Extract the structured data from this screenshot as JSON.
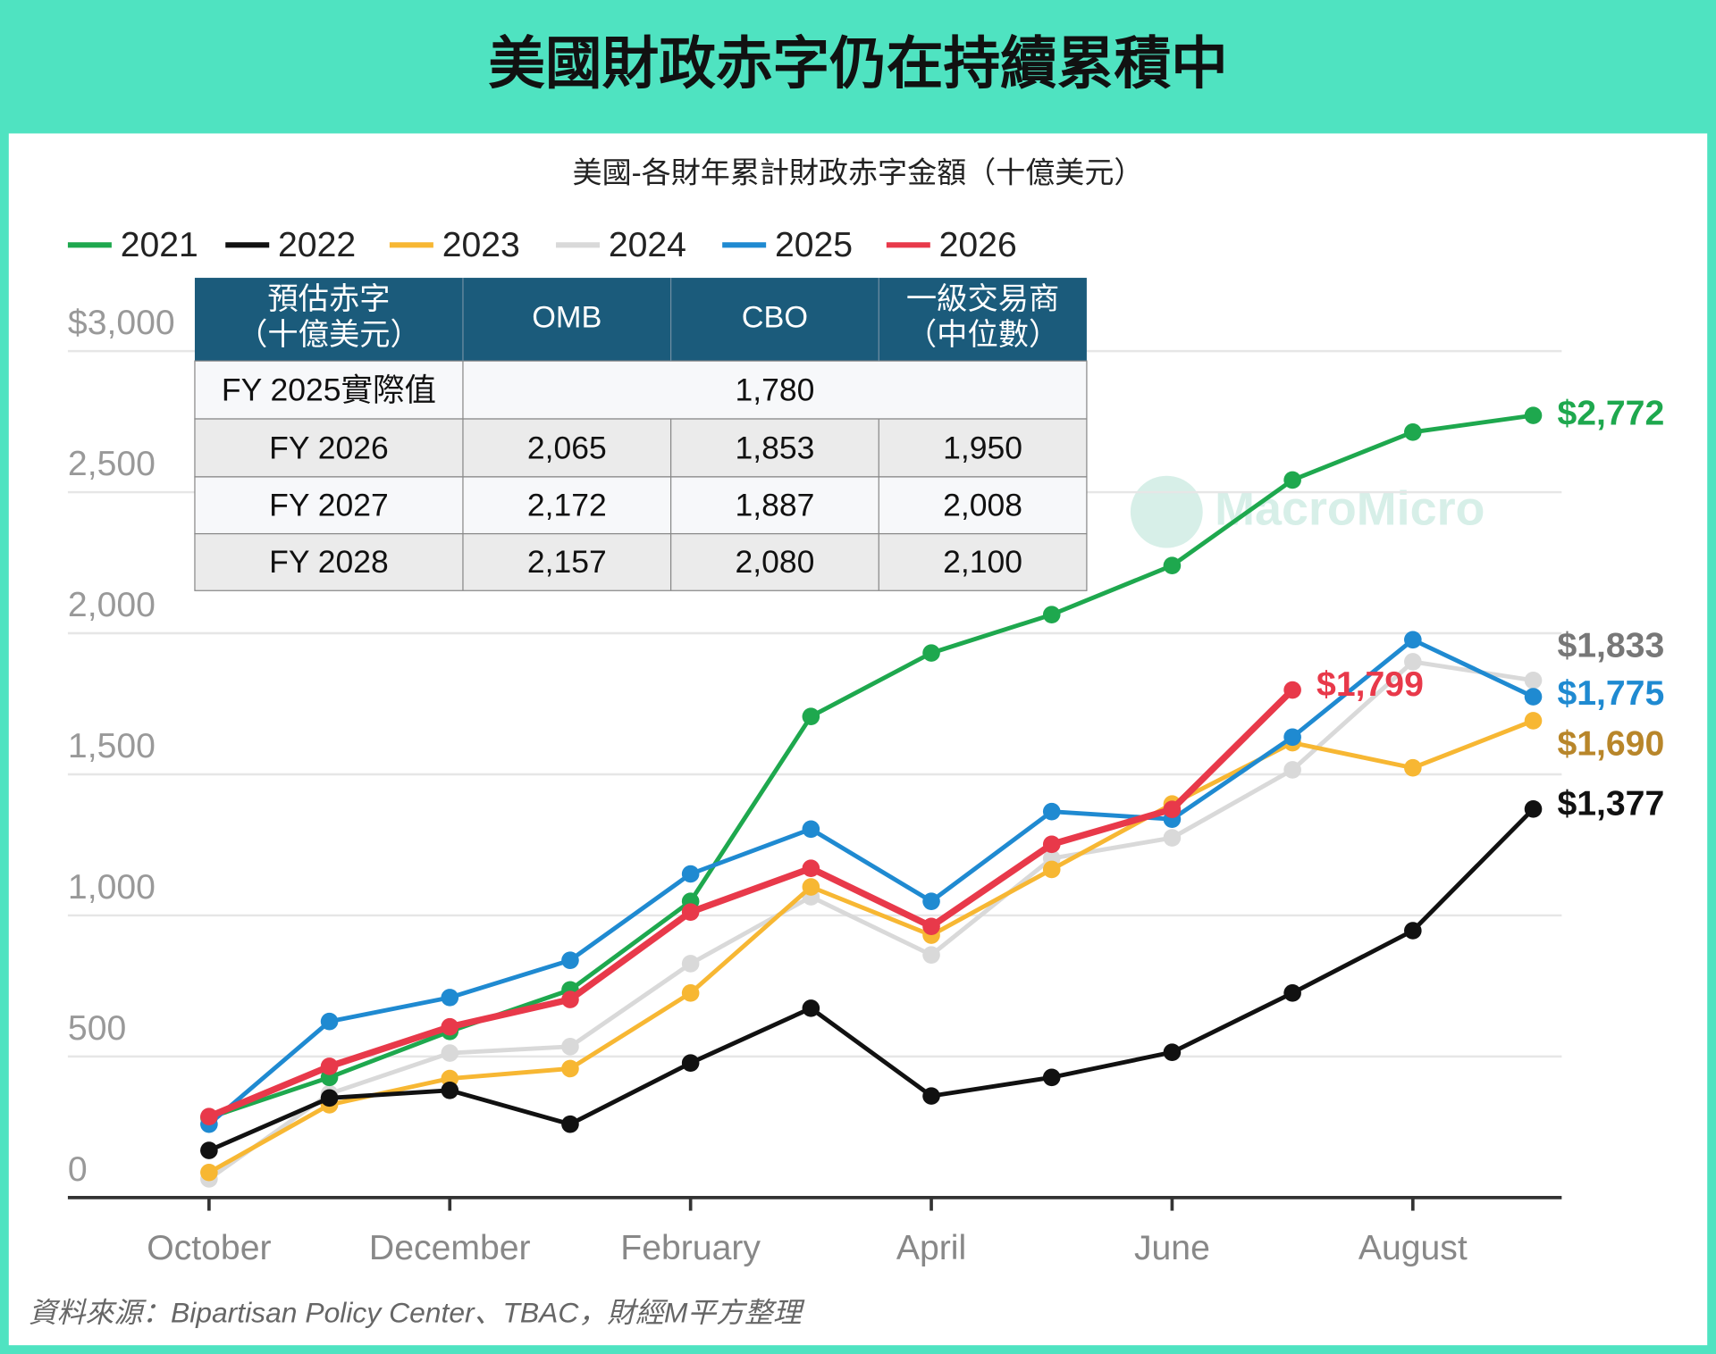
{
  "chart_data": {
    "type": "line",
    "title": "美國財政赤字仍在持續累積中",
    "subtitle": "美國-各財年累計財政赤字金額（十億美元）",
    "source": "資料來源：Bipartisan Policy Center、TBAC，財經M平方整理",
    "watermark": "MacroMicro",
    "categories": [
      "October",
      null,
      "December",
      null,
      "February",
      null,
      "April",
      null,
      "June",
      null,
      "August",
      null
    ],
    "ylim": [
      0,
      3000
    ],
    "yticks": [
      0,
      500,
      {
        "value": 1000,
        "label": "1,000"
      },
      {
        "value": 1500,
        "label": "1,500"
      },
      {
        "value": 2000,
        "label": "2,000"
      },
      {
        "value": 2500,
        "label": "2,500"
      },
      {
        "value": 3000,
        "label": "$3,000"
      }
    ],
    "grid": true,
    "legend": "top-left",
    "series": [
      {
        "name": "2021",
        "color": "#1ea84e",
        "label_color": "#1ea84e",
        "values": [
          283,
          426,
          589,
          736,
          1050,
          1705,
          1930,
          2066,
          2240,
          2543,
          2713,
          2772
        ],
        "value_labels": [
          null,
          null,
          null,
          null,
          null,
          null,
          null,
          null,
          null,
          null,
          null,
          "$2,772"
        ]
      },
      {
        "name": "2022",
        "color": "#111111",
        "label_color": "#111111",
        "values": [
          167,
          353,
          380,
          260,
          477,
          671,
          360,
          426,
          515,
          725,
          946,
          1377
        ],
        "value_labels": [
          null,
          null,
          null,
          null,
          null,
          null,
          null,
          null,
          null,
          null,
          null,
          "$1,377"
        ]
      },
      {
        "name": "2023",
        "color": "#f7b733",
        "label_color": "#b8862a",
        "values": [
          89,
          329,
          422,
          457,
          725,
          1101,
          930,
          1163,
          1395,
          1612,
          1523,
          1690
        ],
        "value_labels": [
          null,
          null,
          null,
          null,
          null,
          null,
          null,
          null,
          null,
          null,
          null,
          "$1,690"
        ]
      },
      {
        "name": "2024",
        "color": "#d9d9d9",
        "label_color": "#777777",
        "values": [
          66,
          368,
          512,
          535,
          829,
          1066,
          860,
          1202,
          1275,
          1516,
          1899,
          1833
        ],
        "value_labels": [
          null,
          null,
          null,
          null,
          null,
          null,
          null,
          null,
          null,
          null,
          null,
          "$1,833"
        ]
      },
      {
        "name": "2025",
        "color": "#1f8ad1",
        "label_color": "#1f8ad1",
        "values": [
          260,
          624,
          709,
          841,
          1147,
          1306,
          1050,
          1368,
          1341,
          1632,
          1977,
          1775
        ],
        "value_labels": [
          null,
          null,
          null,
          null,
          null,
          null,
          null,
          null,
          null,
          null,
          null,
          "$1,775"
        ]
      },
      {
        "name": "2026",
        "color": "#e8394a",
        "label_color": "#e8394a",
        "values": [
          287,
          465,
          605,
          702,
          1012,
          1167,
          961,
          1252,
          1376,
          1799,
          null,
          null
        ],
        "value_labels": [
          null,
          null,
          null,
          null,
          null,
          null,
          null,
          null,
          null,
          "$1,799",
          null,
          null
        ]
      }
    ],
    "table": {
      "header": [
        [
          "預估赤字",
          "（十億美元）"
        ],
        [
          "OMB"
        ],
        [
          "CBO"
        ],
        [
          "一級交易商",
          "（中位數）"
        ]
      ],
      "rows": [
        [
          "FY 2025實際值",
          "1,780"
        ],
        [
          "FY 2026",
          "2,065",
          "1,853",
          "1,950"
        ],
        [
          "FY 2027",
          "2,172",
          "1,887",
          "2,008"
        ],
        [
          "FY 2028",
          "2,157",
          "2,080",
          "2,100"
        ]
      ]
    }
  }
}
